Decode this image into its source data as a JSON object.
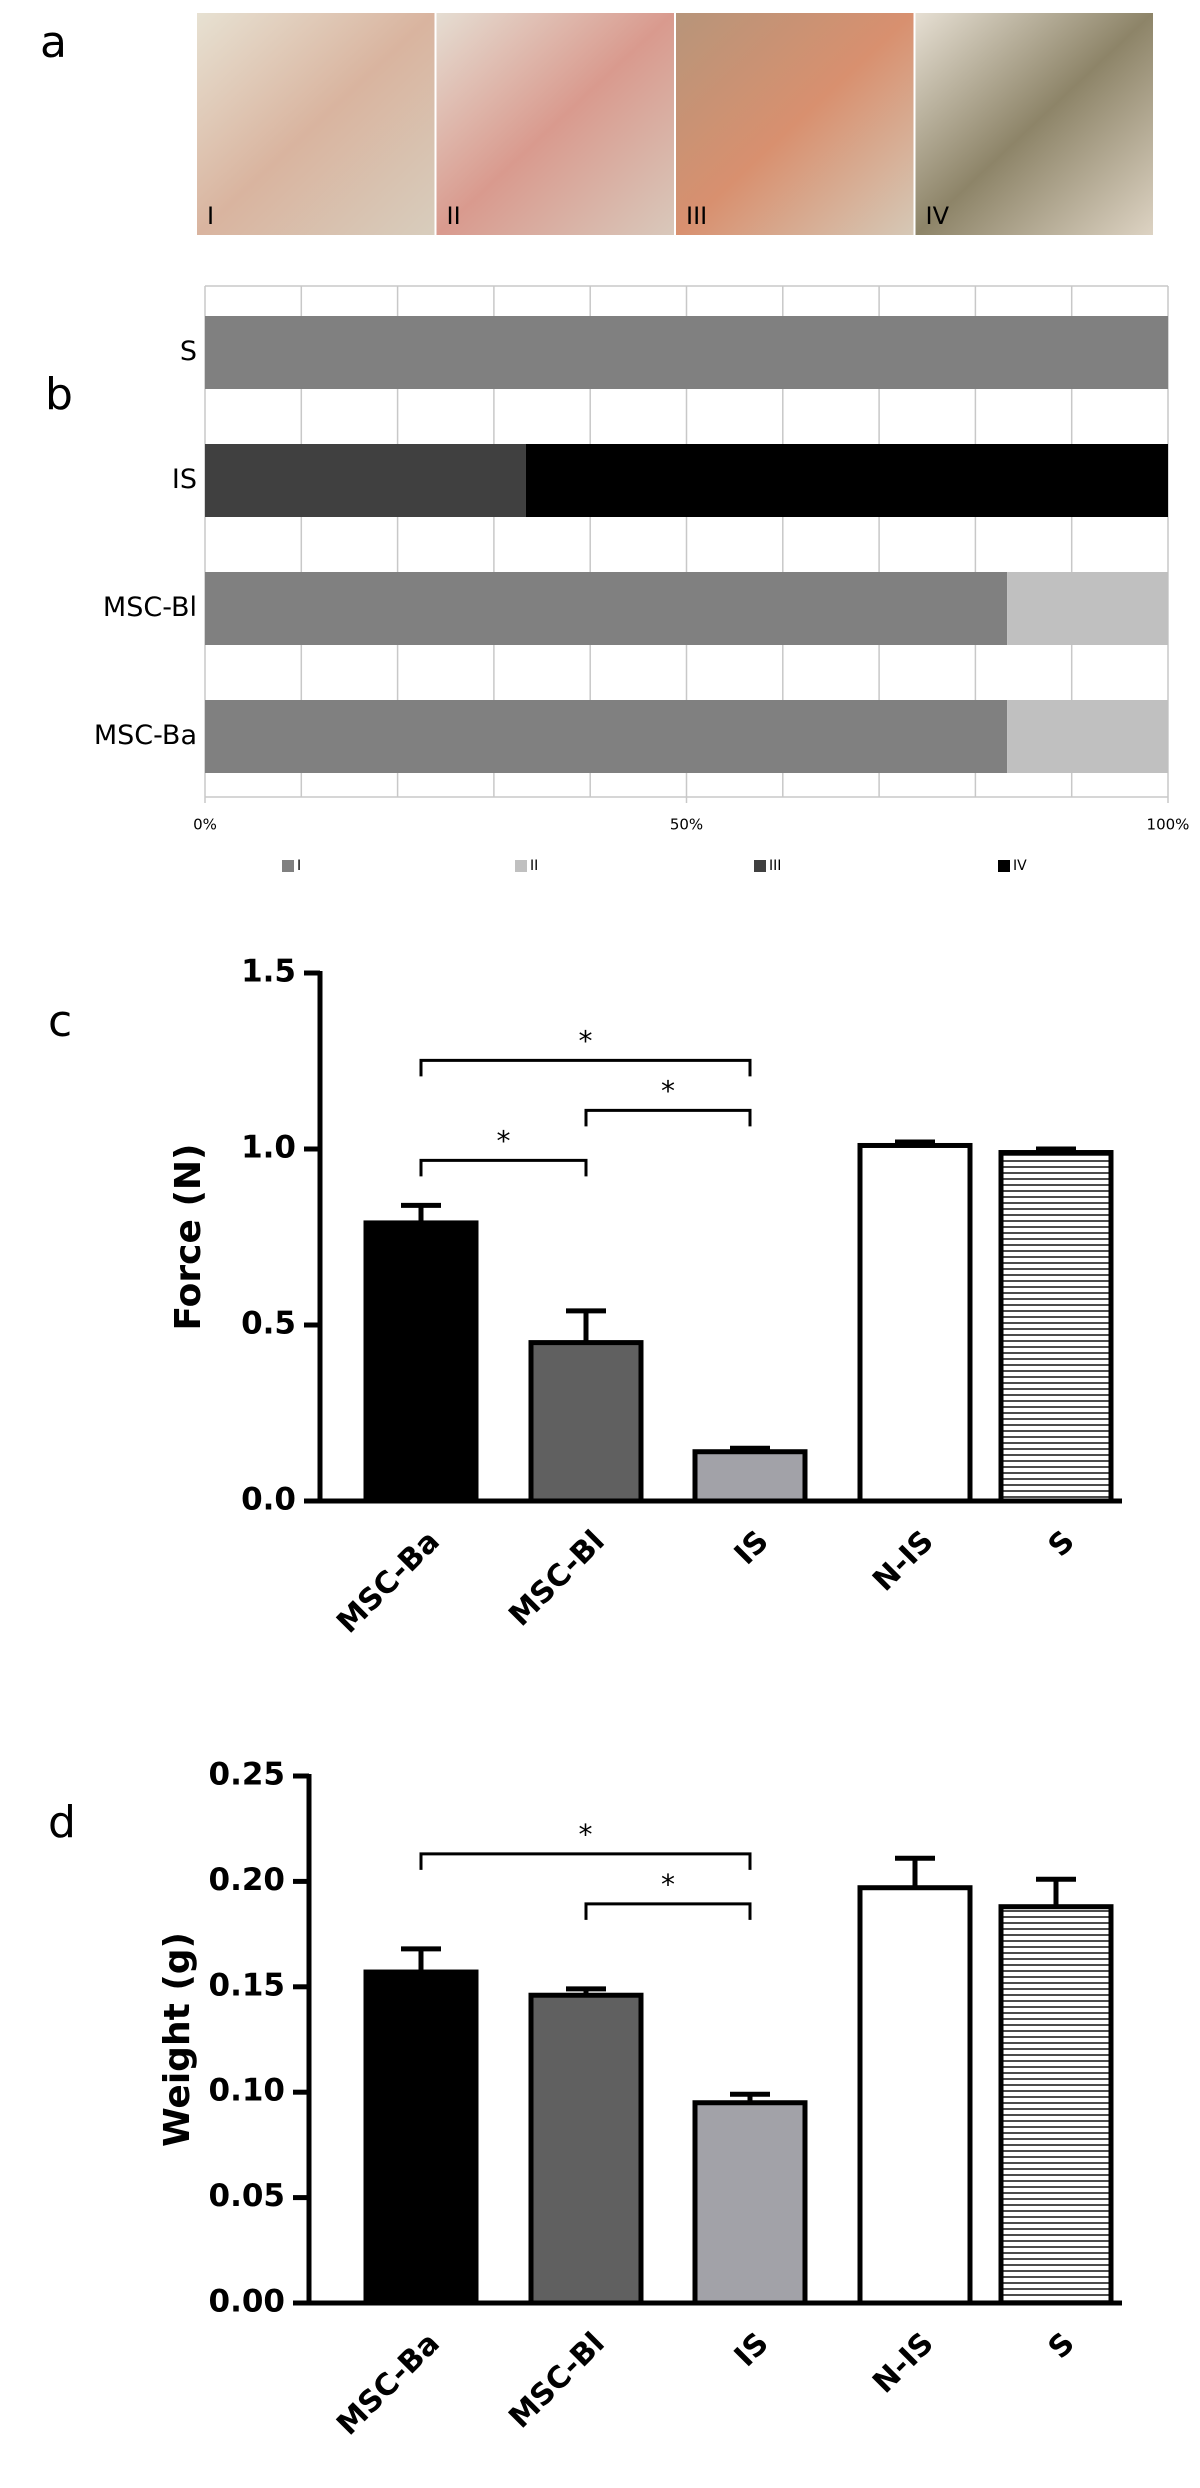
{
  "chart_data": [
    {
      "type": "photos",
      "panel": "a",
      "labels": [
        "I",
        "II",
        "III",
        "IV"
      ]
    },
    {
      "type": "hbar-stacked",
      "panel": "b",
      "categories": [
        "S",
        "IS",
        "MSC-Bl",
        "MSC-Ba"
      ],
      "series": [
        {
          "name": "I",
          "color": "#808080",
          "values": [
            100,
            0,
            83.3,
            83.3
          ]
        },
        {
          "name": "II",
          "color": "#c0c0c0",
          "values": [
            0,
            0,
            16.7,
            16.7
          ]
        },
        {
          "name": "III",
          "color": "#404040",
          "values": [
            0,
            33.3,
            0,
            0
          ]
        },
        {
          "name": "IV",
          "color": "#000000",
          "values": [
            0,
            66.7,
            0,
            0
          ]
        }
      ],
      "xlim": [
        0,
        100
      ],
      "xticks": [
        {
          "value": 0,
          "label": "0%"
        },
        {
          "value": 50,
          "label": "50%"
        },
        {
          "value": 100,
          "label": "100%"
        }
      ],
      "xminor_ticks": [
        0,
        10,
        20,
        30,
        40,
        50,
        60,
        70,
        80,
        90,
        100
      ],
      "grid": true,
      "legend": "bottom"
    },
    {
      "type": "bar",
      "panel": "c",
      "ylabel": "Force (N)",
      "categories": [
        "MSC-Ba",
        "MSC-Bl",
        "IS",
        "N-IS",
        "S"
      ],
      "values": [
        0.79,
        0.45,
        0.14,
        1.01,
        0.99
      ],
      "errors": [
        0.05,
        0.09,
        0.01,
        0.01,
        0.01
      ],
      "colors": [
        "#000000",
        "#606060",
        "#a2a2a8",
        "#ffffff",
        "#ffffff"
      ],
      "hatch": [
        false,
        false,
        false,
        false,
        true
      ],
      "ylim": [
        0,
        1.5
      ],
      "yticks": [
        {
          "value": 0,
          "label": "0.0"
        },
        {
          "value": 0.5,
          "label": "0.5"
        },
        {
          "value": 1,
          "label": "1.0"
        },
        {
          "value": 1.5,
          "label": "1.5"
        }
      ],
      "significance": [
        {
          "pair": [
            0,
            1
          ],
          "label": "*"
        },
        {
          "pair": [
            1,
            2
          ],
          "label": "*"
        },
        {
          "pair": [
            0,
            2
          ],
          "label": "*"
        }
      ]
    },
    {
      "type": "bar",
      "panel": "d",
      "ylabel": "Weight (g)",
      "categories": [
        "MSC-Ba",
        "MSC-Bl",
        "IS",
        "N-IS",
        "S"
      ],
      "values": [
        0.157,
        0.146,
        0.095,
        0.197,
        0.188
      ],
      "errors": [
        0.011,
        0.003,
        0.004,
        0.014,
        0.013
      ],
      "colors": [
        "#000000",
        "#606060",
        "#a2a2a8",
        "#ffffff",
        "#ffffff"
      ],
      "hatch": [
        false,
        false,
        false,
        false,
        true
      ],
      "ylim": [
        0,
        0.25
      ],
      "yticks": [
        {
          "value": 0,
          "label": "0.00"
        },
        {
          "value": 0.05,
          "label": "0.05"
        },
        {
          "value": 0.1,
          "label": "0.10"
        },
        {
          "value": 0.15,
          "label": "0.15"
        },
        {
          "value": 0.2,
          "label": "0.20"
        },
        {
          "value": 0.25,
          "label": "0.25"
        }
      ],
      "significance": [
        {
          "pair": [
            1,
            2
          ],
          "label": "*"
        },
        {
          "pair": [
            0,
            2
          ],
          "label": "*"
        }
      ]
    }
  ]
}
